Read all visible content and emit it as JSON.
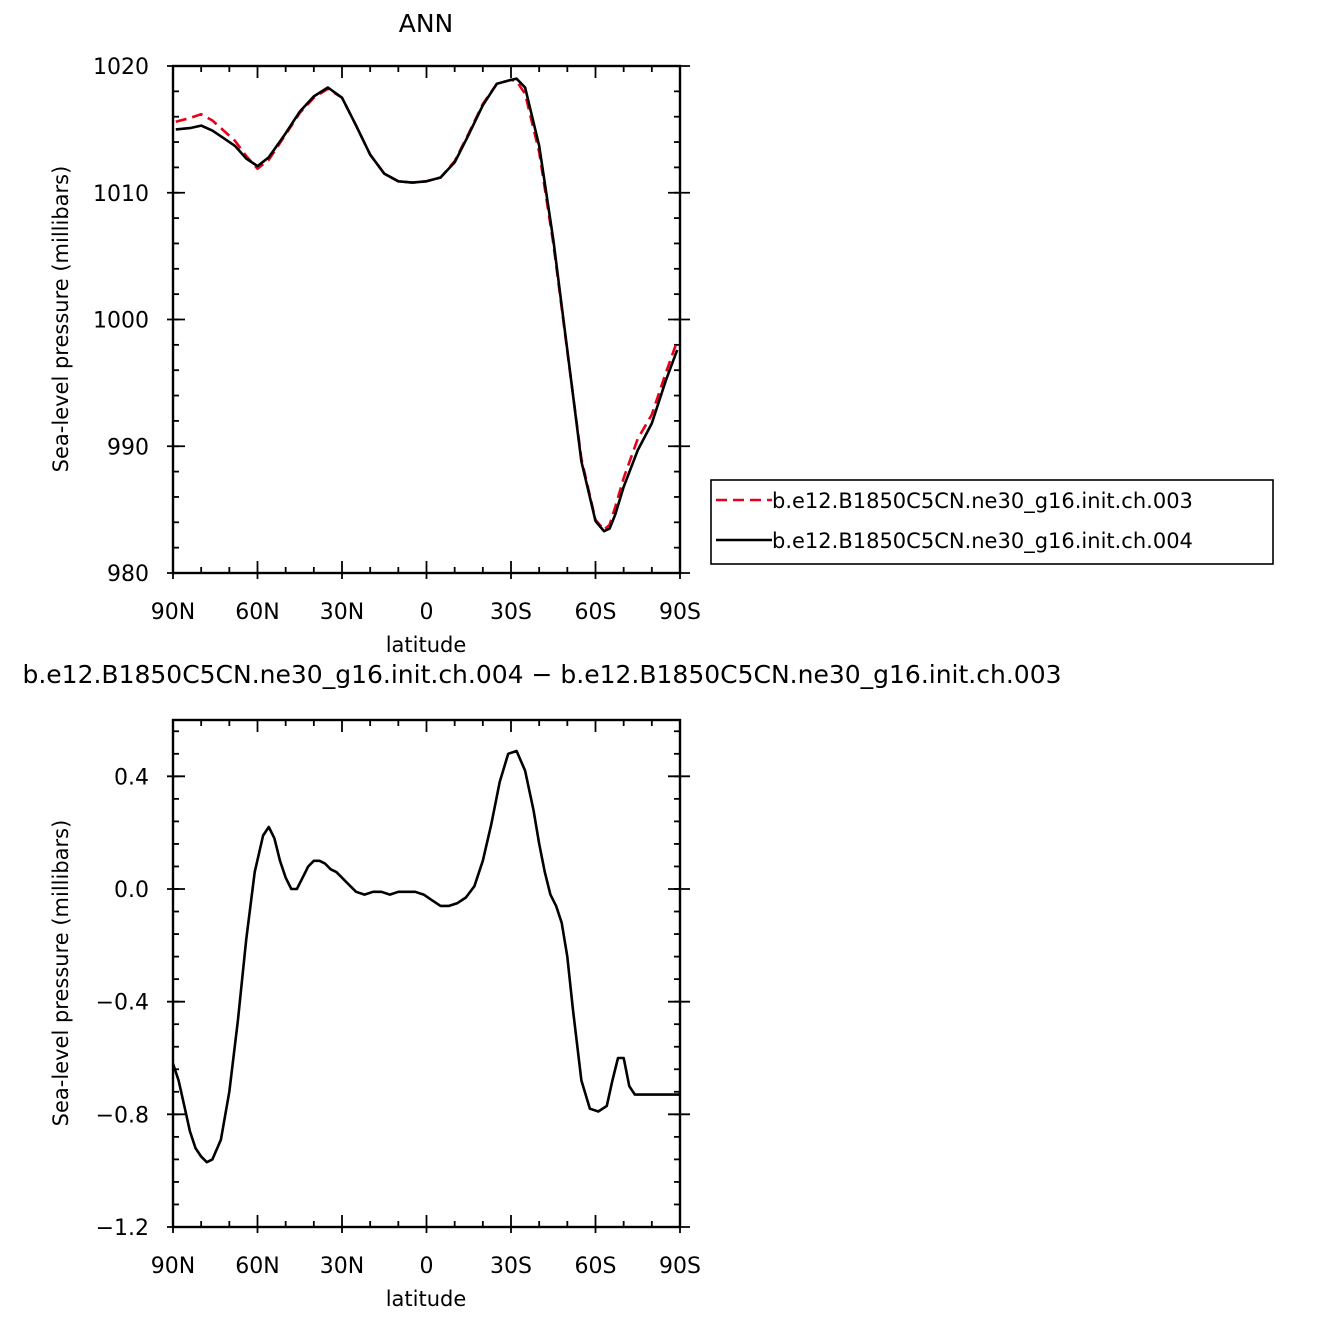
{
  "chart_data": [
    {
      "type": "line",
      "title": "ANN",
      "xlabel": "latitude",
      "ylabel": "Sea-level pressure (millibars)",
      "xlim": [
        90,
        -90
      ],
      "ylim": [
        980,
        1020
      ],
      "x_ticks": [
        90,
        60,
        30,
        0,
        -30,
        -60,
        -90
      ],
      "x_tick_labels": [
        "90N",
        "60N",
        "30N",
        "0",
        "30S",
        "60S",
        "90S"
      ],
      "y_ticks": [
        980,
        990,
        1000,
        1010,
        1020
      ],
      "y_tick_labels": [
        "980",
        "990",
        "1000",
        "1010",
        "1020"
      ],
      "grid": false,
      "legend_position": "right-outside",
      "x": [
        89,
        84,
        80,
        76,
        72,
        68,
        64,
        60,
        56,
        50,
        45,
        40,
        35,
        30,
        25,
        20,
        15,
        10,
        5,
        0,
        -5,
        -10,
        -15,
        -20,
        -25,
        -30,
        -32,
        -35,
        -40,
        -45,
        -50,
        -55,
        -60,
        -63,
        -65,
        -67,
        -70,
        -75,
        -80,
        -85,
        -89
      ],
      "series": [
        {
          "name": "b.e12.B1850C5CN.ne30_g16.init.ch.003",
          "color": "#e8001a",
          "dash": "dashed",
          "values": [
            1015.6,
            1015.9,
            1016.2,
            1015.7,
            1014.9,
            1014.1,
            1012.9,
            1011.9,
            1012.6,
            1014.6,
            1016.3,
            1017.5,
            1018.2,
            1017.5,
            1015.3,
            1013.0,
            1011.5,
            1010.9,
            1010.8,
            1010.9,
            1011.2,
            1012.5,
            1014.7,
            1017.0,
            1018.6,
            1018.9,
            1018.8,
            1017.8,
            1013.2,
            1006.0,
            997.5,
            989.0,
            984.2,
            983.4,
            983.8,
            985.2,
            987.5,
            990.6,
            992.5,
            995.8,
            998.3
          ]
        },
        {
          "name": "b.e12.B1850C5CN.ne30_g16.init.ch.004",
          "color": "#000000",
          "dash": "solid",
          "values": [
            1015.0,
            1015.1,
            1015.3,
            1014.9,
            1014.3,
            1013.7,
            1012.7,
            1012.1,
            1012.8,
            1014.7,
            1016.4,
            1017.6,
            1018.3,
            1017.5,
            1015.3,
            1013.0,
            1011.5,
            1010.9,
            1010.8,
            1010.9,
            1011.2,
            1012.4,
            1014.6,
            1016.9,
            1018.6,
            1018.9,
            1019.0,
            1018.3,
            1013.7,
            1006.3,
            997.6,
            988.8,
            984.1,
            983.3,
            983.5,
            984.6,
            986.8,
            989.7,
            991.8,
            995.2,
            997.6
          ]
        }
      ]
    },
    {
      "type": "line",
      "title": "b.e12.B1850C5CN.ne30_g16.init.ch.004 − b.e12.B1850C5CN.ne30_g16.init.ch.003",
      "xlabel": "latitude",
      "ylabel": "Sea-level pressure (millibars)",
      "xlim": [
        90,
        -90
      ],
      "ylim": [
        -1.2,
        0.6
      ],
      "x_ticks": [
        90,
        60,
        30,
        0,
        -30,
        -60,
        -90
      ],
      "x_tick_labels": [
        "90N",
        "60N",
        "30N",
        "0",
        "30S",
        "60S",
        "90S"
      ],
      "y_ticks": [
        -1.2,
        -0.8,
        -0.4,
        0.0,
        0.4
      ],
      "y_tick_labels": [
        "−1.2",
        "−0.8",
        "−0.4",
        "0.0",
        "0.4"
      ],
      "grid": false,
      "x": [
        90,
        88,
        86,
        84,
        82,
        80,
        78,
        76,
        73,
        70,
        67,
        64,
        61,
        58,
        56,
        54,
        52,
        50,
        48,
        46,
        44,
        42,
        40,
        38,
        36,
        34,
        32,
        30,
        28,
        25,
        22,
        19,
        16,
        13,
        10,
        7,
        4,
        1,
        -2,
        -5,
        -8,
        -11,
        -14,
        -17,
        -20,
        -23,
        -26,
        -29,
        -32,
        -35,
        -38,
        -40,
        -42,
        -44,
        -46,
        -48,
        -50,
        -52,
        -55,
        -58,
        -61,
        -64,
        -66,
        -68,
        -70,
        -72,
        -74,
        -76,
        -78,
        -80,
        -82,
        -84,
        -86,
        -88,
        -90
      ],
      "series": [
        {
          "name": "",
          "color": "#000000",
          "dash": "solid",
          "values": [
            -0.62,
            -0.68,
            -0.77,
            -0.86,
            -0.92,
            -0.95,
            -0.97,
            -0.96,
            -0.89,
            -0.72,
            -0.47,
            -0.18,
            0.06,
            0.19,
            0.22,
            0.18,
            0.1,
            0.04,
            0.0,
            0.0,
            0.04,
            0.08,
            0.1,
            0.1,
            0.09,
            0.07,
            0.06,
            0.04,
            0.02,
            -0.01,
            -0.02,
            -0.01,
            -0.01,
            -0.02,
            -0.01,
            -0.01,
            -0.01,
            -0.02,
            -0.04,
            -0.06,
            -0.06,
            -0.05,
            -0.03,
            0.01,
            0.1,
            0.23,
            0.38,
            0.48,
            0.49,
            0.42,
            0.28,
            0.16,
            0.06,
            -0.02,
            -0.06,
            -0.12,
            -0.24,
            -0.43,
            -0.68,
            -0.78,
            -0.79,
            -0.77,
            -0.68,
            -0.6,
            -0.6,
            -0.7,
            -0.73,
            -0.73,
            -0.73,
            -0.73,
            -0.73,
            -0.73,
            -0.73,
            -0.73,
            -0.73
          ]
        }
      ]
    }
  ]
}
